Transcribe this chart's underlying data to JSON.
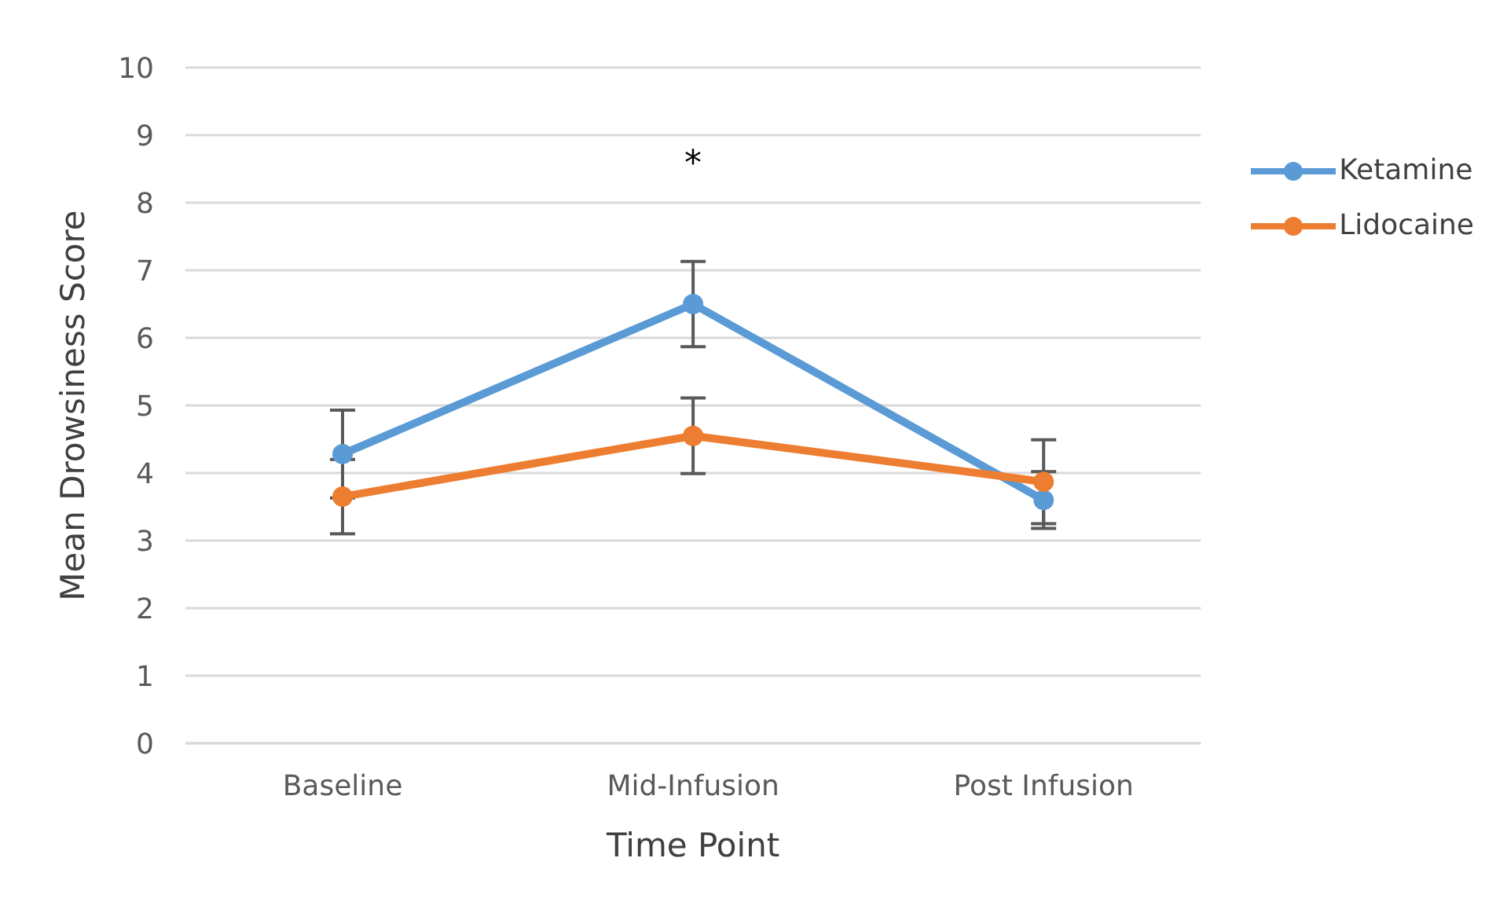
{
  "chart_data": {
    "type": "line",
    "xlabel": "Time Point",
    "ylabel": "Mean Drowsiness Score",
    "categories": [
      "Baseline",
      "Mid-Infusion",
      "Post Infusion"
    ],
    "series": [
      {
        "name": "Ketamine",
        "color": "#5b9bd5",
        "values": [
          4.28,
          6.5,
          3.6
        ],
        "errors": [
          0.65,
          0.63,
          0.42
        ]
      },
      {
        "name": "Lidocaine",
        "color": "#ed7d31",
        "values": [
          3.65,
          4.55,
          3.87
        ],
        "errors": [
          0.55,
          0.56,
          0.62
        ]
      }
    ],
    "ylim": [
      0,
      10
    ],
    "yticks": [
      0,
      1,
      2,
      3,
      4,
      5,
      6,
      7,
      8,
      9,
      10
    ],
    "grid": "y",
    "legend": "right",
    "marker": "circle",
    "line_style": "solid",
    "annotations": [
      "*"
    ]
  }
}
